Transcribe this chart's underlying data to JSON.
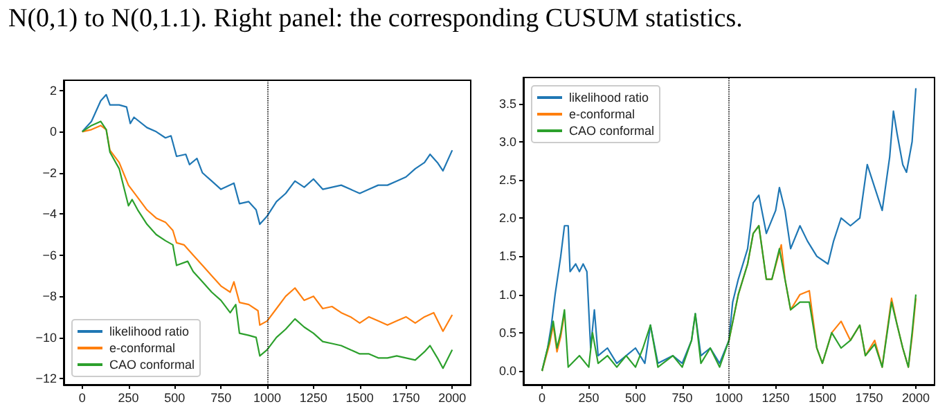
{
  "chart_data": [
    {
      "type": "line",
      "annotations": [
        "N(0,1) to N(0,1.1). Right panel: the corresponding CUSUM statistics."
      ],
      "xlim": [
        -100,
        2100
      ],
      "ylim": [
        -12.3,
        2.5
      ],
      "xticks": [
        0,
        250,
        500,
        750,
        1000,
        1250,
        1500,
        1750,
        2000
      ],
      "yticks": [
        -12,
        -10,
        -8,
        -6,
        -4,
        -2,
        0,
        2
      ],
      "grid": false,
      "legend": "bottom left",
      "marker": "none",
      "ref_lines": [
        {
          "axis": "x",
          "value": 1000,
          "color": "#000000",
          "line_style": "dotted"
        }
      ],
      "series": [
        {
          "name": "likelihood ratio",
          "color": "#1f77b4",
          "x": [
            0,
            50,
            100,
            130,
            150,
            200,
            240,
            260,
            280,
            350,
            400,
            450,
            480,
            510,
            560,
            580,
            620,
            650,
            700,
            750,
            820,
            850,
            900,
            940,
            960,
            1000,
            1050,
            1100,
            1150,
            1200,
            1250,
            1300,
            1350,
            1400,
            1450,
            1500,
            1550,
            1600,
            1650,
            1700,
            1750,
            1800,
            1850,
            1880,
            1920,
            1950,
            2000
          ],
          "values": [
            0,
            0.5,
            1.5,
            1.8,
            1.3,
            1.3,
            1.2,
            0.4,
            0.7,
            0.2,
            0,
            -0.3,
            -0.2,
            -1.2,
            -1.1,
            -1.6,
            -1.3,
            -2,
            -2.4,
            -2.8,
            -2.5,
            -3.5,
            -3.4,
            -3.8,
            -4.5,
            -4.1,
            -3.4,
            -3,
            -2.4,
            -2.7,
            -2.3,
            -2.8,
            -2.7,
            -2.6,
            -2.8,
            -3,
            -2.8,
            -2.6,
            -2.6,
            -2.4,
            -2.2,
            -1.8,
            -1.5,
            -1.1,
            -1.5,
            -1.9,
            -0.9
          ]
        },
        {
          "name": "e-conformal",
          "color": "#ff7f0e",
          "x": [
            0,
            50,
            100,
            130,
            150,
            200,
            250,
            300,
            350,
            400,
            450,
            490,
            510,
            550,
            600,
            650,
            700,
            750,
            800,
            820,
            850,
            900,
            950,
            960,
            1000,
            1050,
            1100,
            1150,
            1200,
            1250,
            1300,
            1350,
            1400,
            1450,
            1500,
            1550,
            1600,
            1650,
            1700,
            1750,
            1800,
            1850,
            1900,
            1950,
            2000
          ],
          "values": [
            0,
            0.1,
            0.3,
            0.1,
            -0.9,
            -1.5,
            -2.6,
            -3.2,
            -3.8,
            -4.2,
            -4.4,
            -4.8,
            -5.4,
            -5.5,
            -6,
            -6.5,
            -7,
            -7.5,
            -7.8,
            -7.3,
            -8.3,
            -8.4,
            -8.7,
            -9.4,
            -9.2,
            -8.6,
            -8,
            -7.6,
            -8.2,
            -8,
            -8.6,
            -8.5,
            -8.8,
            -9,
            -9.3,
            -9,
            -9.2,
            -9.4,
            -9.2,
            -9,
            -9.3,
            -9,
            -8.8,
            -9.7,
            -8.9
          ]
        },
        {
          "name": "CAO conformal",
          "color": "#2ca02c",
          "x": [
            0,
            50,
            100,
            130,
            150,
            200,
            250,
            270,
            300,
            350,
            400,
            450,
            490,
            510,
            570,
            600,
            650,
            700,
            750,
            800,
            830,
            850,
            900,
            940,
            960,
            1000,
            1050,
            1100,
            1150,
            1200,
            1250,
            1300,
            1350,
            1400,
            1450,
            1500,
            1550,
            1600,
            1650,
            1700,
            1750,
            1800,
            1850,
            1880,
            1920,
            1950,
            2000
          ],
          "values": [
            0,
            0.3,
            0.5,
            0.1,
            -1,
            -1.8,
            -3.6,
            -3.3,
            -3.8,
            -4.5,
            -5,
            -5.3,
            -5.5,
            -6.5,
            -6.3,
            -6.8,
            -7.3,
            -7.8,
            -8.2,
            -8.8,
            -8.4,
            -9.8,
            -9.9,
            -10,
            -10.9,
            -10.6,
            -10,
            -9.6,
            -9.1,
            -9.5,
            -9.8,
            -10.2,
            -10.3,
            -10.4,
            -10.6,
            -10.8,
            -10.8,
            -11,
            -11,
            -10.9,
            -11,
            -11.1,
            -10.7,
            -10.4,
            -11,
            -11.5,
            -10.6
          ]
        }
      ]
    },
    {
      "type": "line",
      "xlim": [
        -100,
        2100
      ],
      "ylim": [
        -0.18,
        3.84
      ],
      "xticks": [
        0,
        250,
        500,
        750,
        1000,
        1250,
        1500,
        1750,
        2000
      ],
      "yticks": [
        {
          "value": 0,
          "label": "0.0"
        },
        {
          "value": 0.5,
          "label": "0.5"
        },
        {
          "value": 1,
          "label": "1.0"
        },
        {
          "value": 1.5,
          "label": "1.5"
        },
        {
          "value": 2,
          "label": "2.0"
        },
        {
          "value": 2.5,
          "label": "2.5"
        },
        {
          "value": 3,
          "label": "3.0"
        },
        {
          "value": 3.5,
          "label": "3.5"
        }
      ],
      "grid": false,
      "legend": "top left",
      "marker": "none",
      "ref_lines": [
        {
          "axis": "x",
          "value": 1000,
          "color": "#000000",
          "line_style": "dotted"
        }
      ],
      "series": [
        {
          "name": "likelihood ratio",
          "color": "#1f77b4",
          "x": [
            0,
            30,
            50,
            70,
            100,
            120,
            140,
            150,
            180,
            200,
            220,
            240,
            260,
            280,
            300,
            350,
            400,
            450,
            500,
            550,
            580,
            620,
            700,
            750,
            800,
            820,
            850,
            900,
            950,
            1000,
            1020,
            1050,
            1100,
            1130,
            1160,
            1200,
            1250,
            1270,
            1300,
            1330,
            1380,
            1420,
            1470,
            1530,
            1560,
            1600,
            1650,
            1700,
            1740,
            1780,
            1820,
            1860,
            1880,
            1900,
            1930,
            1950,
            1980,
            2000
          ],
          "values": [
            0,
            0.3,
            0.6,
            1,
            1.5,
            1.9,
            1.9,
            1.3,
            1.4,
            1.3,
            1.4,
            1.3,
            0.3,
            0.8,
            0.2,
            0.3,
            0.1,
            0.2,
            0.3,
            0.1,
            0.6,
            0.1,
            0.2,
            0.1,
            0.4,
            0.75,
            0.2,
            0.3,
            0.1,
            0.4,
            0.9,
            1.2,
            1.6,
            2.2,
            2.3,
            1.8,
            2.1,
            2.4,
            2.1,
            1.6,
            1.9,
            1.7,
            1.5,
            1.4,
            1.7,
            2,
            1.9,
            2,
            2.7,
            2.4,
            2.1,
            2.8,
            3.4,
            3.1,
            2.7,
            2.6,
            3,
            3.7
          ]
        },
        {
          "name": "e-conformal",
          "color": "#ff7f0e",
          "x": [
            0,
            40,
            60,
            80,
            100,
            120,
            140,
            200,
            250,
            270,
            300,
            350,
            400,
            450,
            500,
            540,
            580,
            620,
            700,
            750,
            800,
            820,
            850,
            900,
            950,
            1000,
            1050,
            1100,
            1130,
            1160,
            1200,
            1230,
            1280,
            1300,
            1330,
            1380,
            1430,
            1470,
            1500,
            1550,
            1600,
            1650,
            1700,
            1730,
            1780,
            1820,
            1870,
            1900,
            1930,
            1960,
            1980,
            2000
          ],
          "values": [
            0,
            0.35,
            0.6,
            0.25,
            0.45,
            0.75,
            null,
            null,
            null,
            null,
            null,
            null,
            null,
            null,
            null,
            null,
            null,
            null,
            null,
            null,
            null,
            null,
            null,
            null,
            null,
            0.4,
            1,
            1.4,
            1.8,
            1.9,
            1.2,
            1.2,
            1.65,
            1.2,
            0.8,
            1,
            1.05,
            0.3,
            0.1,
            0.5,
            0.65,
            0.4,
            0.6,
            0.2,
            0.4,
            0.05,
            0.95,
            0.6,
            0.3,
            0.05,
            0.45,
            0.95
          ]
        },
        {
          "name": "CAO conformal",
          "color": "#2ca02c",
          "x": [
            0,
            40,
            60,
            80,
            100,
            120,
            140,
            200,
            250,
            270,
            300,
            350,
            400,
            450,
            500,
            540,
            580,
            620,
            700,
            750,
            800,
            820,
            850,
            900,
            950,
            1000,
            1050,
            1100,
            1130,
            1160,
            1200,
            1230,
            1270,
            1300,
            1330,
            1380,
            1430,
            1470,
            1500,
            1550,
            1600,
            1650,
            1700,
            1730,
            1780,
            1820,
            1870,
            1900,
            1930,
            1960,
            1980,
            2000
          ],
          "values": [
            0,
            0.4,
            0.65,
            0.3,
            0.5,
            0.8,
            0.05,
            0.2,
            0.05,
            0.5,
            0.1,
            0.2,
            0.05,
            0.2,
            0.05,
            0.3,
            0.6,
            0.05,
            0.2,
            0.05,
            0.4,
            0.75,
            0.1,
            0.3,
            0.05,
            0.4,
            1,
            1.4,
            1.8,
            1.9,
            1.2,
            1.2,
            1.6,
            1.2,
            0.8,
            0.9,
            0.9,
            0.3,
            0.1,
            0.5,
            0.3,
            0.4,
            0.6,
            0.2,
            0.35,
            0.05,
            0.9,
            0.6,
            0.3,
            0.05,
            0.5,
            1
          ]
        }
      ]
    }
  ]
}
